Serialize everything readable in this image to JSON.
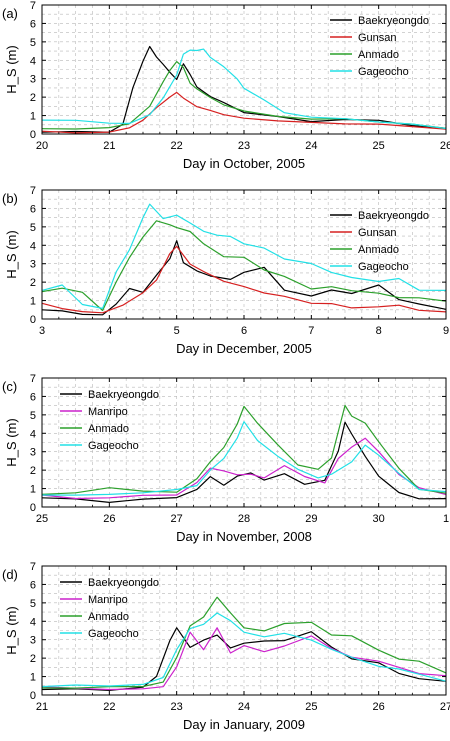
{
  "chart_data": [
    {
      "type": "line",
      "panel_label": "(a)",
      "xlabel": "Day in October, 2005",
      "ylabel": "H_S (m)",
      "xlim": [
        20,
        26
      ],
      "ylim": [
        0,
        7
      ],
      "xticks": [
        "20",
        "21",
        "22",
        "23",
        "24",
        "25",
        "26"
      ],
      "yticks": [
        "0",
        "1",
        "2",
        "3",
        "4",
        "5",
        "6",
        "7"
      ],
      "legend_position": "top-right",
      "series": [
        {
          "name": "Baekryeongdo",
          "color": "#000000",
          "x": [
            20,
            20.5,
            21,
            21.2,
            21.35,
            21.5,
            21.6,
            21.7,
            21.8,
            21.9,
            22.0,
            22.1,
            22.2,
            22.3,
            22.5,
            22.7,
            23,
            23.5,
            24,
            24.5,
            25,
            25.5,
            26
          ],
          "y": [
            0.1,
            0.1,
            0.15,
            0.5,
            2.5,
            4.0,
            4.7,
            4.2,
            3.8,
            3.3,
            3.0,
            3.8,
            3.2,
            2.6,
            2.0,
            1.7,
            1.2,
            0.9,
            0.7,
            0.8,
            0.7,
            0.5,
            0.3
          ]
        },
        {
          "name": "Gunsan",
          "color": "#d62020",
          "x": [
            20,
            20.5,
            21,
            21.3,
            21.5,
            21.7,
            21.9,
            22.0,
            22.1,
            22.3,
            22.5,
            22.7,
            23,
            23.5,
            24,
            24.5,
            25,
            25.5,
            26
          ],
          "y": [
            0.1,
            0.1,
            0.1,
            0.3,
            0.8,
            1.4,
            2.0,
            2.3,
            1.9,
            1.5,
            1.3,
            1.0,
            0.9,
            0.7,
            0.6,
            0.6,
            0.5,
            0.4,
            0.3
          ]
        },
        {
          "name": "Anmado",
          "color": "#2ca02c",
          "x": [
            20,
            20.5,
            21,
            21.3,
            21.6,
            21.8,
            21.9,
            22.0,
            22.1,
            22.2,
            22.3,
            22.5,
            22.7,
            23,
            23.5,
            24,
            24.5,
            25,
            25.5,
            26
          ],
          "y": [
            0.3,
            0.3,
            0.3,
            0.6,
            1.5,
            2.8,
            3.5,
            3.9,
            3.6,
            2.8,
            2.4,
            2.0,
            1.6,
            1.2,
            1.0,
            0.8,
            0.8,
            0.7,
            0.5,
            0.3
          ]
        },
        {
          "name": "Gageocho",
          "color": "#22e0e6",
          "x": [
            20,
            20.5,
            21,
            21.3,
            21.6,
            21.8,
            22.0,
            22.1,
            22.2,
            22.3,
            22.4,
            22.5,
            22.7,
            22.9,
            23,
            23.3,
            23.6,
            24,
            24.5,
            25,
            25.5,
            26
          ],
          "y": [
            0.8,
            0.7,
            0.6,
            0.6,
            1.0,
            2.0,
            3.2,
            4.3,
            4.6,
            4.5,
            4.6,
            4.2,
            3.6,
            3.0,
            2.5,
            1.8,
            1.2,
            0.9,
            0.8,
            0.7,
            0.5,
            0.3
          ]
        }
      ]
    },
    {
      "type": "line",
      "panel_label": "(b)",
      "xlabel": "Day in December, 2005",
      "ylabel": "H_S (m)",
      "xlim": [
        3,
        9
      ],
      "ylim": [
        0,
        7
      ],
      "xticks": [
        "3",
        "4",
        "5",
        "6",
        "7",
        "8",
        "9"
      ],
      "yticks": [
        "0",
        "1",
        "2",
        "3",
        "4",
        "5",
        "6",
        "7"
      ],
      "legend_position": "right",
      "series": [
        {
          "name": "Baekryeongdo",
          "color": "#000000",
          "x": [
            3,
            3.3,
            3.6,
            3.9,
            4.1,
            4.3,
            4.5,
            4.7,
            4.9,
            5.0,
            5.1,
            5.3,
            5.5,
            5.8,
            6,
            6.3,
            6.6,
            7,
            7.3,
            7.6,
            8,
            8.3,
            8.6,
            9
          ],
          "y": [
            0.5,
            0.4,
            0.3,
            0.2,
            0.8,
            1.7,
            1.4,
            2.4,
            3.3,
            4.2,
            3.1,
            2.6,
            2.3,
            2.2,
            2.5,
            2.8,
            1.6,
            1.2,
            1.6,
            1.4,
            1.8,
            1.1,
            0.8,
            0.5
          ]
        },
        {
          "name": "Gunsan",
          "color": "#d62020",
          "x": [
            3,
            3.3,
            3.6,
            3.9,
            4.2,
            4.5,
            4.7,
            4.9,
            5.0,
            5.2,
            5.4,
            5.7,
            6,
            6.3,
            6.6,
            7,
            7.3,
            7.6,
            8,
            8.3,
            8.6,
            9
          ],
          "y": [
            0.8,
            0.6,
            0.4,
            0.3,
            0.8,
            1.4,
            2.1,
            3.6,
            3.9,
            3.0,
            2.6,
            2.0,
            1.8,
            1.4,
            1.2,
            0.9,
            0.8,
            0.6,
            0.7,
            0.7,
            0.5,
            0.4
          ]
        },
        {
          "name": "Anmado",
          "color": "#2ca02c",
          "x": [
            3,
            3.3,
            3.6,
            3.9,
            4.1,
            4.3,
            4.5,
            4.7,
            4.9,
            5.0,
            5.2,
            5.4,
            5.7,
            6,
            6.3,
            6.6,
            7,
            7.3,
            7.6,
            8,
            8.3,
            8.6,
            9
          ],
          "y": [
            1.5,
            1.7,
            1.4,
            0.5,
            2.0,
            3.3,
            4.5,
            5.3,
            5.1,
            5.0,
            4.7,
            4.1,
            3.4,
            3.3,
            2.7,
            2.3,
            1.6,
            1.8,
            1.5,
            1.4,
            1.2,
            1.1,
            1.0
          ]
        },
        {
          "name": "Gageocho",
          "color": "#22e0e6",
          "x": [
            3,
            3.3,
            3.6,
            3.9,
            4.1,
            4.3,
            4.5,
            4.6,
            4.8,
            5.0,
            5.2,
            5.4,
            5.6,
            5.8,
            6,
            6.3,
            6.6,
            7,
            7.3,
            7.6,
            8,
            8.3,
            8.6,
            9
          ],
          "y": [
            1.6,
            1.8,
            0.8,
            0.6,
            2.5,
            3.8,
            5.5,
            6.2,
            5.5,
            5.6,
            5.2,
            4.8,
            4.5,
            4.5,
            4.1,
            3.8,
            3.3,
            3.0,
            2.5,
            2.3,
            2.0,
            2.2,
            1.6,
            1.5
          ]
        }
      ]
    },
    {
      "type": "line",
      "panel_label": "(c)",
      "xlabel": "Day in November, 2008",
      "ylabel": "H_S (m)",
      "xlim": [
        25,
        31
      ],
      "ylim": [
        0,
        7
      ],
      "xticks": [
        "25",
        "26",
        "27",
        "28",
        "29",
        "30",
        "1"
      ],
      "yticks": [
        "0",
        "1",
        "2",
        "3",
        "4",
        "5",
        "6",
        "7"
      ],
      "legend_position": "top-left",
      "series": [
        {
          "name": "Baekryeongdo",
          "color": "#000000",
          "x": [
            25,
            25.5,
            26,
            26.5,
            27,
            27.3,
            27.5,
            27.7,
            27.9,
            28.1,
            28.3,
            28.6,
            28.9,
            29.2,
            29.4,
            29.5,
            29.6,
            29.8,
            30,
            30.3,
            30.6,
            31
          ],
          "y": [
            0.5,
            0.4,
            0.3,
            0.4,
            0.5,
            1.0,
            1.6,
            1.2,
            1.7,
            1.8,
            1.5,
            1.8,
            1.2,
            1.5,
            3.0,
            4.6,
            4.0,
            2.7,
            1.7,
            0.8,
            0.4,
            0.5
          ]
        },
        {
          "name": "Manripo",
          "color": "#cc22cc",
          "x": [
            25,
            25.5,
            26,
            26.5,
            27,
            27.3,
            27.5,
            27.7,
            27.9,
            28.1,
            28.3,
            28.6,
            28.9,
            29.2,
            29.4,
            29.6,
            29.8,
            30,
            30.3,
            30.6,
            31
          ],
          "y": [
            0.6,
            0.5,
            0.5,
            0.6,
            0.7,
            1.3,
            2.1,
            2.0,
            1.7,
            1.8,
            1.6,
            2.2,
            1.7,
            1.3,
            2.6,
            3.3,
            3.7,
            3.0,
            1.8,
            1.0,
            0.7
          ]
        },
        {
          "name": "Anmado",
          "color": "#2ca02c",
          "x": [
            25,
            25.5,
            26,
            26.5,
            27,
            27.3,
            27.5,
            27.7,
            27.9,
            28.0,
            28.2,
            28.5,
            28.8,
            29.1,
            29.3,
            29.5,
            29.6,
            29.8,
            30,
            30.3,
            30.6,
            31
          ],
          "y": [
            0.7,
            0.8,
            1.0,
            0.9,
            0.8,
            1.5,
            2.5,
            3.2,
            4.5,
            5.5,
            4.5,
            3.4,
            2.3,
            2.0,
            2.7,
            5.5,
            4.9,
            4.6,
            3.5,
            2.1,
            1.0,
            0.7
          ]
        },
        {
          "name": "Gageocho",
          "color": "#22e0e6",
          "x": [
            25,
            25.5,
            26,
            26.5,
            27,
            27.3,
            27.5,
            27.7,
            27.9,
            28.0,
            28.2,
            28.5,
            28.8,
            29.1,
            29.3,
            29.6,
            29.8,
            30,
            30.3,
            30.6,
            31
          ],
          "y": [
            0.7,
            0.6,
            0.7,
            0.8,
            0.9,
            1.2,
            2.0,
            2.6,
            3.8,
            4.6,
            3.6,
            2.8,
            2.0,
            1.6,
            1.8,
            2.4,
            3.4,
            2.8,
            1.8,
            1.0,
            0.8
          ]
        }
      ]
    },
    {
      "type": "line",
      "panel_label": "(d)",
      "xlabel": "Day in January, 2009",
      "ylabel": "H_S (m)",
      "xlim": [
        21,
        27
      ],
      "ylim": [
        0,
        7
      ],
      "xticks": [
        "21",
        "22",
        "23",
        "24",
        "25",
        "26",
        "27"
      ],
      "yticks": [
        "0",
        "1",
        "2",
        "3",
        "4",
        "5",
        "6",
        "7"
      ],
      "legend_position": "top-left",
      "series": [
        {
          "name": "Baekryeongdo",
          "color": "#000000",
          "x": [
            21,
            21.5,
            22,
            22.5,
            22.7,
            22.9,
            23.0,
            23.2,
            23.4,
            23.6,
            23.8,
            24,
            24.3,
            24.6,
            25,
            25.3,
            25.6,
            26,
            26.3,
            26.6,
            27
          ],
          "y": [
            0.3,
            0.3,
            0.3,
            0.4,
            1.0,
            3.0,
            3.6,
            2.6,
            3.0,
            3.2,
            2.6,
            2.8,
            2.9,
            3.0,
            3.4,
            2.6,
            2.0,
            1.7,
            1.2,
            0.9,
            0.7
          ]
        },
        {
          "name": "Manripo",
          "color": "#cc22cc",
          "x": [
            21,
            21.5,
            22,
            22.5,
            22.8,
            23.0,
            23.2,
            23.4,
            23.6,
            23.8,
            24,
            24.3,
            24.6,
            25,
            25.3,
            25.6,
            26,
            26.3,
            26.6,
            27
          ],
          "y": [
            0.4,
            0.4,
            0.3,
            0.3,
            0.5,
            1.5,
            3.4,
            2.5,
            3.6,
            2.3,
            2.7,
            2.3,
            2.7,
            3.2,
            2.5,
            2.1,
            1.8,
            1.5,
            1.2,
            1.0
          ]
        },
        {
          "name": "Anmado",
          "color": "#2ca02c",
          "x": [
            21,
            21.5,
            22,
            22.5,
            22.8,
            23.0,
            23.2,
            23.4,
            23.6,
            23.8,
            24,
            24.3,
            24.6,
            25,
            25.3,
            25.6,
            26,
            26.3,
            26.6,
            27
          ],
          "y": [
            0.4,
            0.4,
            0.4,
            0.5,
            0.7,
            2.0,
            3.8,
            4.2,
            5.3,
            4.5,
            3.6,
            3.5,
            3.9,
            3.9,
            3.3,
            3.2,
            2.4,
            2.0,
            1.8,
            1.2
          ]
        },
        {
          "name": "Gageocho",
          "color": "#22e0e6",
          "x": [
            21,
            21.5,
            22,
            22.5,
            22.8,
            23.0,
            23.2,
            23.4,
            23.6,
            23.8,
            24,
            24.3,
            24.6,
            25,
            25.3,
            25.6,
            26,
            26.3,
            26.6,
            27
          ],
          "y": [
            0.5,
            0.5,
            0.5,
            0.6,
            0.9,
            2.5,
            3.6,
            3.8,
            4.5,
            4.0,
            3.4,
            3.2,
            3.3,
            3.0,
            2.5,
            2.0,
            1.6,
            1.4,
            1.1,
            0.8
          ]
        }
      ]
    }
  ]
}
